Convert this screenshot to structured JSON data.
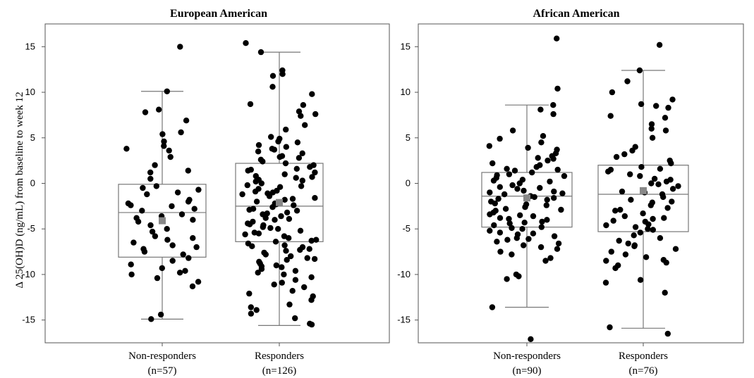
{
  "ylabel": "Δ 25(OH)D (ng/mL)  from  baseline  to  week 12",
  "chart_data": [
    {
      "type": "box",
      "title": "European American",
      "ylim": [
        -17.5,
        17.5
      ],
      "yticks": [
        15,
        10,
        5,
        0,
        -5,
        -10,
        -15
      ],
      "ytick_labels": [
        "15",
        "10",
        "5",
        "0",
        "-5",
        "-10",
        "-15"
      ],
      "groups": [
        {
          "name": "Non-responders",
          "n_label": "(n=57)",
          "whisker_low": -14.9,
          "q1": -8.1,
          "median": -3.2,
          "q3": -0.1,
          "whisker_high": 10.1,
          "mean": -4.1,
          "points": [
            15.0,
            10.1,
            8.1,
            7.8,
            6.9,
            5.6,
            5.4,
            4.6,
            4.1,
            3.8,
            3.6,
            2.9,
            2.0,
            1.4,
            1.2,
            -0.3,
            -0.5,
            -0.7,
            -1.0,
            -1.8,
            -2.0,
            -2.2,
            -2.5,
            -2.8,
            -3.0,
            -3.4,
            -3.8,
            -4.0,
            -4.2,
            -4.6,
            -5.0,
            -5.3,
            -5.8,
            -6.2,
            -6.5,
            -6.8,
            -7.0,
            -7.2,
            -7.5,
            -7.8,
            -8.2,
            -8.5,
            -8.9,
            -9.3,
            -9.6,
            -9.8,
            -10.0,
            -10.4,
            -10.8,
            -11.3,
            -14.4,
            -14.9,
            -3.6,
            -2.4,
            -6.0,
            -1.2,
            0.5
          ]
        },
        {
          "name": "Responders",
          "n_label": "(n=126)",
          "whisker_low": -15.6,
          "q1": -6.4,
          "median": -2.5,
          "q3": 2.2,
          "whisker_high": 14.4,
          "mean": -2.1,
          "points": [
            15.4,
            14.4,
            12.4,
            12.0,
            11.8,
            10.6,
            9.8,
            8.7,
            8.6,
            7.9,
            7.6,
            7.4,
            6.4,
            5.9,
            5.1,
            4.9,
            4.6,
            4.5,
            4.2,
            4.0,
            3.8,
            3.5,
            3.3,
            3.0,
            2.8,
            2.6,
            2.4,
            2.2,
            2.0,
            1.8,
            1.6,
            1.4,
            1.2,
            1.0,
            0.8,
            0.6,
            0.4,
            0.2,
            0.0,
            -0.2,
            -0.4,
            -0.6,
            -0.8,
            -1.0,
            -1.2,
            -1.4,
            -1.6,
            -1.8,
            -2.0,
            -2.2,
            -2.4,
            -2.6,
            -2.8,
            -3.0,
            -3.2,
            -3.4,
            -3.6,
            -3.8,
            -4.0,
            -4.2,
            -4.4,
            -4.6,
            -4.8,
            -5.0,
            -5.2,
            -5.4,
            -5.6,
            -5.8,
            -6.0,
            -6.2,
            -6.4,
            -6.6,
            -6.8,
            -7.0,
            -7.2,
            -7.4,
            -7.6,
            -7.8,
            -8.0,
            -8.2,
            -8.4,
            -8.6,
            -8.8,
            -9.0,
            -9.2,
            -9.4,
            -9.6,
            -9.8,
            -10.0,
            -10.3,
            -10.6,
            -10.9,
            -11.1,
            -11.4,
            -11.8,
            -12.1,
            -12.4,
            -12.8,
            -13.3,
            -13.6,
            -13.9,
            -14.3,
            -14.8,
            -15.4,
            -15.5,
            -1.1,
            -0.3,
            0.7,
            1.5,
            2.9,
            3.7,
            -2.9,
            -3.3,
            -4.9,
            -5.5,
            -6.3,
            -7.3,
            -8.3,
            -9.1,
            -1.7,
            -2.3,
            -0.9,
            0.3,
            -3.9,
            -4.5,
            -6.9
          ]
        }
      ]
    },
    {
      "type": "box",
      "title": "African American",
      "ylim": [
        -17.5,
        17.5
      ],
      "yticks": [
        15,
        10,
        5,
        0,
        -5,
        -10,
        -15
      ],
      "ytick_labels": [
        "15",
        "10",
        "5",
        "0",
        "-5",
        "-10",
        "-15"
      ],
      "groups": [
        {
          "name": "Non-responders",
          "n_label": "(n=90)",
          "whisker_low": -13.6,
          "q1": -4.8,
          "median": -1.4,
          "q3": 1.2,
          "whisker_high": 8.6,
          "mean": -1.6,
          "points": [
            15.9,
            10.4,
            8.6,
            8.1,
            7.6,
            5.8,
            5.2,
            4.9,
            4.5,
            4.1,
            3.9,
            3.7,
            3.3,
            3.0,
            2.8,
            2.5,
            2.2,
            2.0,
            1.8,
            1.6,
            1.4,
            1.2,
            1.0,
            0.8,
            0.6,
            0.4,
            0.2,
            0.0,
            -0.2,
            -0.4,
            -0.6,
            -0.8,
            -1.0,
            -1.2,
            -1.4,
            -1.6,
            -1.8,
            -2.0,
            -2.2,
            -2.4,
            -2.6,
            -2.8,
            -3.0,
            -3.2,
            -3.4,
            -3.6,
            -3.8,
            -4.0,
            -4.2,
            -4.4,
            -4.6,
            -4.8,
            -5.0,
            -5.2,
            -5.4,
            -5.6,
            -5.8,
            -6.0,
            -6.2,
            -6.4,
            -6.6,
            -6.8,
            -7.0,
            -7.2,
            -7.5,
            -7.8,
            -8.2,
            -8.5,
            -10.0,
            -10.2,
            -10.5,
            -13.6,
            -17.1,
            -1.1,
            -1.7,
            -2.3,
            -2.9,
            -3.5,
            0.3,
            0.9,
            1.5,
            -0.5,
            -4.3,
            -4.9,
            -5.5,
            -6.1,
            2.7,
            -0.9,
            -3.9,
            -1.5
          ]
        },
        {
          "name": "Responders",
          "n_label": "(n=76)",
          "whisker_low": -15.9,
          "q1": -5.3,
          "median": -1.2,
          "q3": 2.0,
          "whisker_high": 12.4,
          "mean": -0.8,
          "points": [
            15.2,
            12.4,
            11.2,
            10.0,
            9.2,
            8.7,
            8.5,
            8.3,
            7.4,
            7.2,
            6.5,
            6.0,
            5.8,
            5.0,
            4.0,
            3.2,
            2.5,
            2.2,
            1.8,
            1.5,
            1.3,
            1.0,
            0.8,
            0.5,
            0.2,
            0.0,
            -0.3,
            -0.6,
            -0.9,
            -1.2,
            -1.5,
            -1.8,
            -2.1,
            -2.4,
            -2.7,
            -3.0,
            -3.3,
            -3.6,
            -3.9,
            -4.2,
            -4.5,
            -4.8,
            -5.1,
            -5.4,
            -5.7,
            -6.0,
            -6.3,
            -6.6,
            -6.9,
            -7.2,
            -7.5,
            -7.8,
            -8.1,
            -8.4,
            -8.7,
            -9.0,
            -9.3,
            -10.6,
            -10.9,
            -12.0,
            -15.8,
            -16.5,
            1.6,
            0.4,
            -1.0,
            -2.0,
            -3.8,
            -4.6,
            -5.0,
            -6.8,
            -8.5,
            2.9,
            3.6,
            -0.1,
            -2.9,
            -4.1
          ]
        }
      ]
    }
  ]
}
